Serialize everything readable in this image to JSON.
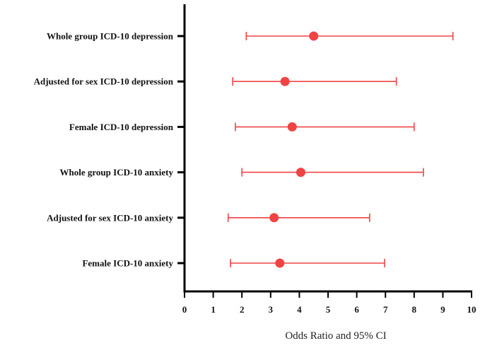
{
  "chart_data": {
    "type": "forest",
    "title": "",
    "xlabel": "Odds Ratio and 95% CI",
    "ylabel": "",
    "xlim": [
      0,
      10
    ],
    "xticks": [
      "0",
      "1",
      "2",
      "3",
      "4",
      "5",
      "6",
      "7",
      "8",
      "9",
      "10"
    ],
    "grid": false,
    "point_color": "#ef4444",
    "rows": [
      {
        "label": "Whole group ICD-10 depression",
        "or": 4.5,
        "ci_low": 2.15,
        "ci_high": 9.35
      },
      {
        "label": "Adjusted for sex ICD-10 depression",
        "or": 3.5,
        "ci_low": 1.68,
        "ci_high": 7.38
      },
      {
        "label": "Female ICD-10 depression",
        "or": 3.75,
        "ci_low": 1.77,
        "ci_high": 8.0
      },
      {
        "label": "Whole group ICD-10 anxiety",
        "or": 4.05,
        "ci_low": 2.0,
        "ci_high": 8.32
      },
      {
        "label": "Adjusted for sex ICD-10 anxiety",
        "or": 3.12,
        "ci_low": 1.52,
        "ci_high": 6.45
      },
      {
        "label": "Female ICD-10 anxiety",
        "or": 3.32,
        "ci_low": 1.6,
        "ci_high": 6.97
      }
    ]
  }
}
